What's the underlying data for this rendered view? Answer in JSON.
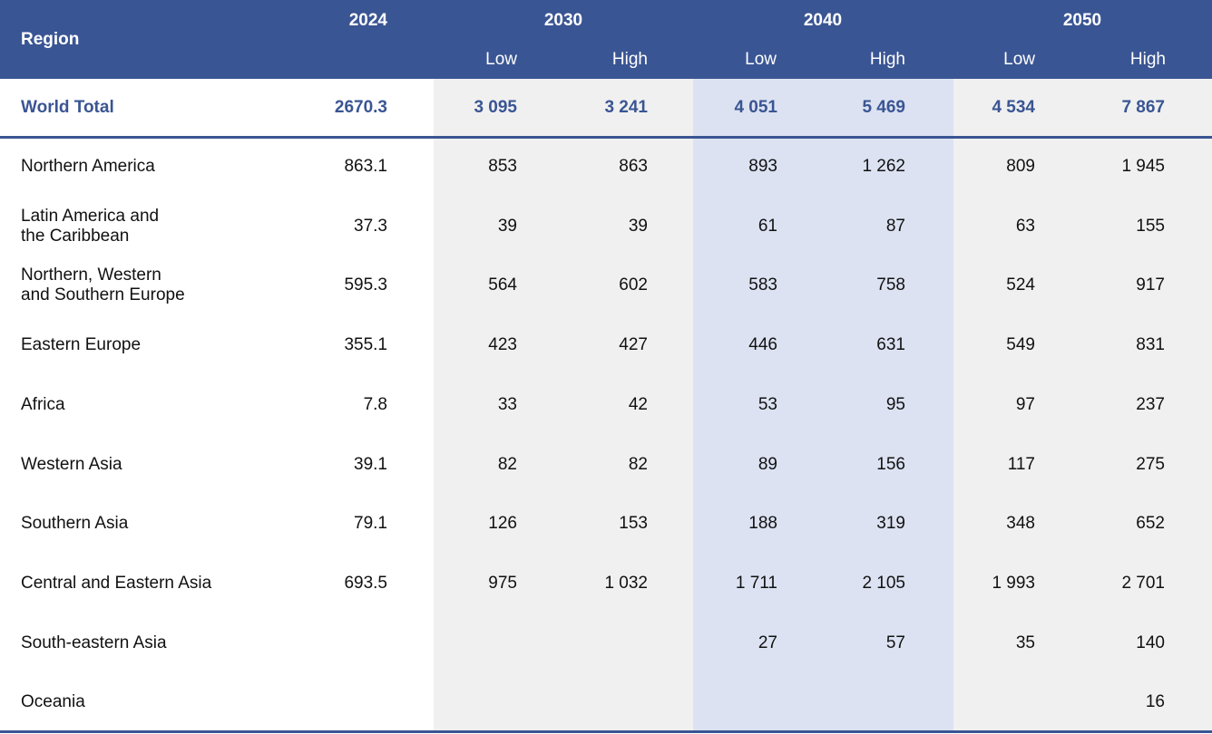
{
  "chart_data": {
    "type": "table",
    "header": {
      "region_label": "Region",
      "years": [
        "2024",
        "2030",
        "2040",
        "2050"
      ],
      "sub": [
        "Low",
        "High",
        "Low",
        "High",
        "Low",
        "High"
      ]
    },
    "total": {
      "region": "World Total",
      "values": [
        "2670.3",
        "3 095",
        "3 241",
        "4 051",
        "5 469",
        "4 534",
        "7 867"
      ]
    },
    "rows": [
      {
        "region": "Northern America",
        "values": [
          "863.1",
          "853",
          "863",
          "893",
          "1 262",
          "809",
          "1 945"
        ]
      },
      {
        "region": "Latin America and\nthe Caribbean",
        "values": [
          "37.3",
          "39",
          "39",
          "61",
          "87",
          "63",
          "155"
        ]
      },
      {
        "region": "Northern, Western\nand Southern Europe",
        "values": [
          "595.3",
          "564",
          "602",
          "583",
          "758",
          "524",
          "917"
        ]
      },
      {
        "region": "Eastern Europe",
        "values": [
          "355.1",
          "423",
          "427",
          "446",
          "631",
          "549",
          "831"
        ]
      },
      {
        "region": "Africa",
        "values": [
          "7.8",
          "33",
          "42",
          "53",
          "95",
          "97",
          "237"
        ]
      },
      {
        "region": "Western Asia",
        "values": [
          "39.1",
          "82",
          "82",
          "89",
          "156",
          "117",
          "275"
        ]
      },
      {
        "region": "Southern Asia",
        "values": [
          "79.1",
          "126",
          "153",
          "188",
          "319",
          "348",
          "652"
        ]
      },
      {
        "region": "Central and Eastern Asia",
        "values": [
          "693.5",
          "975",
          "1 032",
          "1 711",
          "2 105",
          "1 993",
          "2 701"
        ]
      },
      {
        "region": "South-eastern Asia",
        "values": [
          "",
          "",
          "",
          "27",
          "57",
          "35",
          "140"
        ]
      },
      {
        "region": "Oceania",
        "values": [
          "",
          "",
          "",
          "",
          "",
          "",
          "16"
        ]
      }
    ],
    "colors": {
      "header_bg": "#3a5593",
      "accent_text": "#3a5593",
      "band_grey": "#f0f0f0",
      "band_blue": "#dce2f2"
    }
  }
}
